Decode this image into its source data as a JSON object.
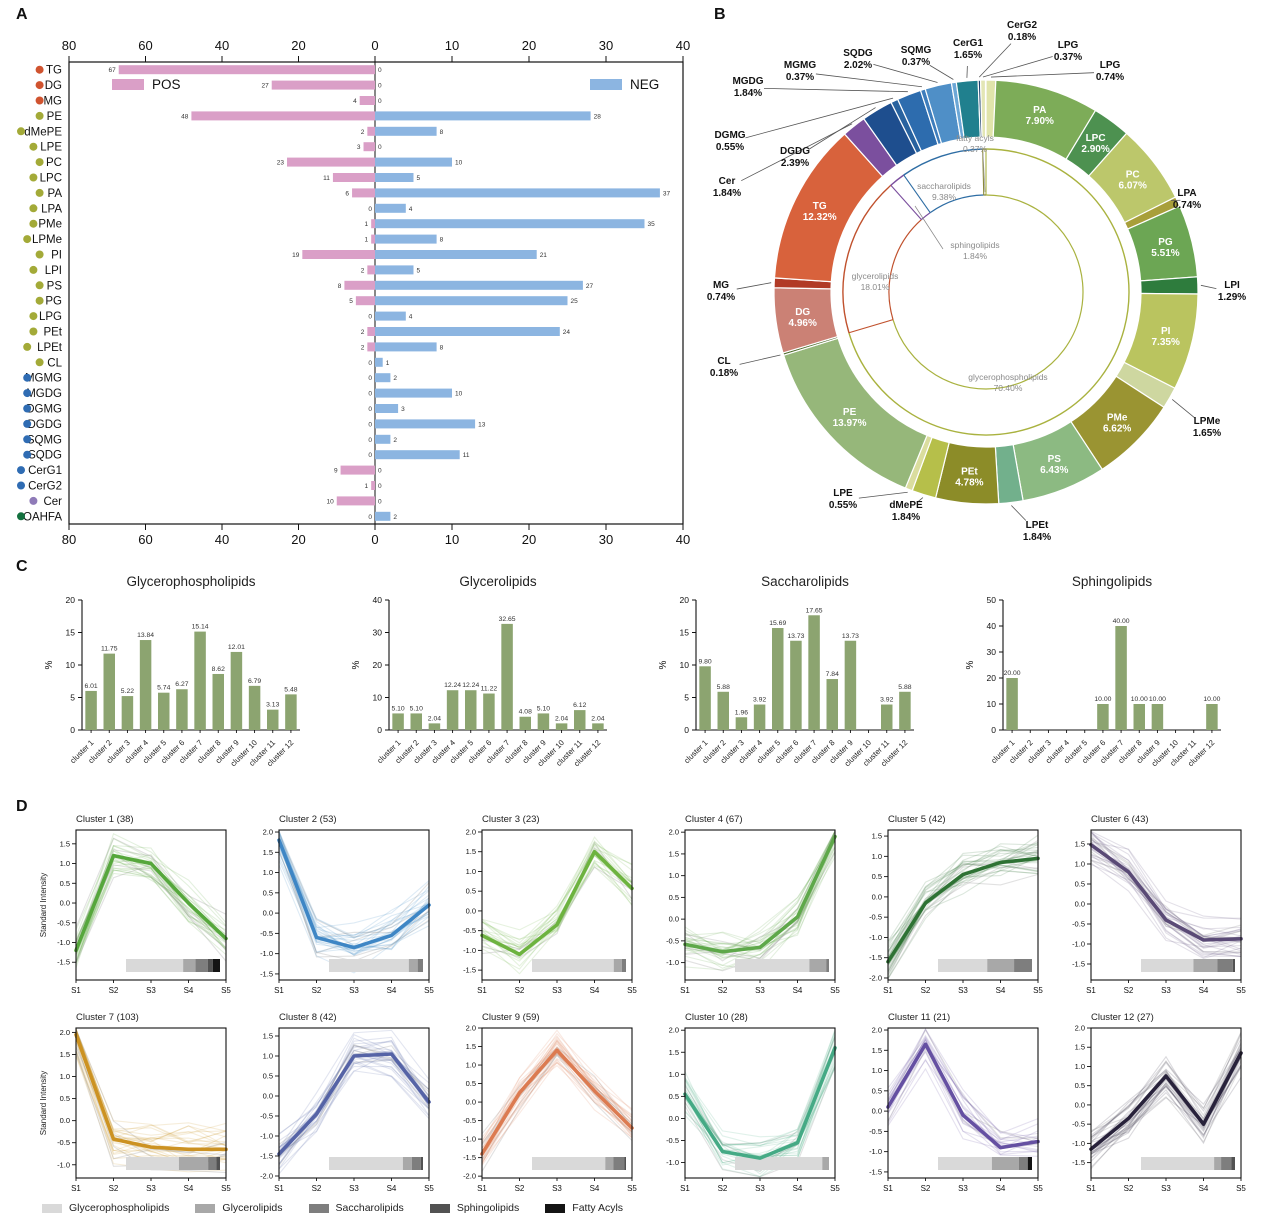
{
  "panel_letters": {
    "a": "A",
    "b": "B",
    "c": "C",
    "d": "D"
  },
  "figure_legend": {
    "items": [
      {
        "label": "Glycerophospholipids",
        "color": "#d9d9d9"
      },
      {
        "label": "Glycerolipids",
        "color": "#a8a8a8"
      },
      {
        "label": "Saccharolipids",
        "color": "#7e7e7e"
      },
      {
        "label": "Sphingolipids",
        "color": "#525252"
      },
      {
        "label": "Fatty Acyls",
        "color": "#141414"
      }
    ]
  },
  "chart_data": [
    {
      "panel": "A",
      "type": "bar",
      "orientation": "diverging-horizontal",
      "legend": [
        {
          "name": "POS",
          "color": "#DA9FC7"
        },
        {
          "name": "NEG",
          "color": "#8CB5E1"
        }
      ],
      "axis": {
        "left_max": 80,
        "right_max": 40,
        "left_ticks": [
          80,
          60,
          40,
          20,
          0
        ],
        "right_ticks": [
          10,
          20,
          30,
          40
        ]
      },
      "group_colors": {
        "glycerolipids": "#d0532f",
        "glycerophospholipids": "#a3aa38",
        "saccharolipids": "#2f6cb3",
        "sphingolipids": "#8f7bb8",
        "fatty_acyls": "#14713f"
      },
      "rows": [
        {
          "label": "TG",
          "group": "glycerolipids",
          "pos": 67,
          "neg": 0
        },
        {
          "label": "DG",
          "group": "glycerolipids",
          "pos": 27,
          "neg": 0
        },
        {
          "label": "MG",
          "group": "glycerolipids",
          "pos": 4,
          "neg": 0
        },
        {
          "label": "PE",
          "group": "glycerophospholipids",
          "pos": 48,
          "neg": 28
        },
        {
          "label": "dMePE",
          "group": "glycerophospholipids",
          "pos": 2,
          "neg": 8
        },
        {
          "label": "LPE",
          "group": "glycerophospholipids",
          "pos": 3,
          "neg": 0
        },
        {
          "label": "PC",
          "group": "glycerophospholipids",
          "pos": 23,
          "neg": 10
        },
        {
          "label": "LPC",
          "group": "glycerophospholipids",
          "pos": 11,
          "neg": 5
        },
        {
          "label": "PA",
          "group": "glycerophospholipids",
          "pos": 6,
          "neg": 37
        },
        {
          "label": "LPA",
          "group": "glycerophospholipids",
          "pos": 0,
          "neg": 4
        },
        {
          "label": "PMe",
          "group": "glycerophospholipids",
          "pos": 1,
          "neg": 35
        },
        {
          "label": "LPMe",
          "group": "glycerophospholipids",
          "pos": 1,
          "neg": 8
        },
        {
          "label": "PI",
          "group": "glycerophospholipids",
          "pos": 19,
          "neg": 21
        },
        {
          "label": "LPI",
          "group": "glycerophospholipids",
          "pos": 2,
          "neg": 5
        },
        {
          "label": "PS",
          "group": "glycerophospholipids",
          "pos": 8,
          "neg": 27
        },
        {
          "label": "PG",
          "group": "glycerophospholipids",
          "pos": 5,
          "neg": 25
        },
        {
          "label": "LPG",
          "group": "glycerophospholipids",
          "pos": 0,
          "neg": 4
        },
        {
          "label": "PEt",
          "group": "glycerophospholipids",
          "pos": 2,
          "neg": 24
        },
        {
          "label": "LPEt",
          "group": "glycerophospholipids",
          "pos": 2,
          "neg": 8
        },
        {
          "label": "CL",
          "group": "glycerophospholipids",
          "pos": 0,
          "neg": 1
        },
        {
          "label": "MGMG",
          "group": "saccharolipids",
          "pos": 0,
          "neg": 2
        },
        {
          "label": "MGDG",
          "group": "saccharolipids",
          "pos": 0,
          "neg": 10
        },
        {
          "label": "DGMG",
          "group": "saccharolipids",
          "pos": 0,
          "neg": 3
        },
        {
          "label": "DGDG",
          "group": "saccharolipids",
          "pos": 0,
          "neg": 13
        },
        {
          "label": "SQMG",
          "group": "saccharolipids",
          "pos": 0,
          "neg": 2
        },
        {
          "label": "SQDG",
          "group": "saccharolipids",
          "pos": 0,
          "neg": 11
        },
        {
          "label": "CerG1",
          "group": "saccharolipids",
          "pos": 9,
          "neg": 0
        },
        {
          "label": "CerG2",
          "group": "saccharolipids",
          "pos": 1,
          "neg": 0
        },
        {
          "label": "Cer",
          "group": "sphingolipids",
          "pos": 10,
          "neg": 0
        },
        {
          "label": "OAHFA",
          "group": "fatty_acyls",
          "pos": 0,
          "neg": 2
        }
      ]
    },
    {
      "panel": "B",
      "type": "pie",
      "style": "sunburst-donut",
      "outer": [
        {
          "label": "LPG",
          "pct": 0.74,
          "color": "#e0e4ab"
        },
        {
          "label": "PA",
          "pct": 7.9,
          "color": "#7dac58"
        },
        {
          "label": "LPC",
          "pct": 2.9,
          "color": "#4d9150"
        },
        {
          "label": "PC",
          "pct": 6.07,
          "color": "#bcc76b"
        },
        {
          "label": "LPA",
          "pct": 0.74,
          "color": "#a89f3a"
        },
        {
          "label": "PG",
          "pct": 5.51,
          "color": "#6ca654"
        },
        {
          "label": "LPI",
          "pct": 1.29,
          "color": "#2e7c3d"
        },
        {
          "label": "PI",
          "pct": 7.35,
          "color": "#bac45f"
        },
        {
          "label": "LPMe",
          "pct": 1.65,
          "color": "#ced7a0"
        },
        {
          "label": "PMe",
          "pct": 6.62,
          "color": "#9a9432"
        },
        {
          "label": "PS",
          "pct": 6.43,
          "color": "#8cba82"
        },
        {
          "label": "LPEt",
          "pct": 1.84,
          "color": "#72b08c"
        },
        {
          "label": "PEt",
          "pct": 4.78,
          "color": "#8c8c28"
        },
        {
          "label": "dMePE",
          "pct": 1.84,
          "color": "#b6bf4a"
        },
        {
          "label": "LPE",
          "pct": 0.55,
          "color": "#dadd9e"
        },
        {
          "label": "PE",
          "pct": 13.97,
          "color": "#96b77a"
        },
        {
          "label": "CL",
          "pct": 0.18,
          "color": "#4c6a2a"
        },
        {
          "label": "DG",
          "pct": 4.96,
          "color": "#cb8175"
        },
        {
          "label": "MG",
          "pct": 0.74,
          "color": "#b13a26"
        },
        {
          "label": "TG",
          "pct": 12.32,
          "color": "#d8623c"
        },
        {
          "label": "Cer",
          "pct": 1.84,
          "color": "#7b4f9e"
        },
        {
          "label": "DGDG",
          "pct": 2.39,
          "color": "#1e4e8e"
        },
        {
          "label": "DGMG",
          "pct": 0.55,
          "color": "#28629f"
        },
        {
          "label": "MGDG",
          "pct": 1.84,
          "color": "#2d6cae"
        },
        {
          "label": "MGMG",
          "pct": 0.37,
          "color": "#3e7dbc"
        },
        {
          "label": "SQDG",
          "pct": 2.02,
          "color": "#4f8fc7"
        },
        {
          "label": "SQMG",
          "pct": 0.37,
          "color": "#6ca7d6"
        },
        {
          "label": "CerG1",
          "pct": 1.65,
          "color": "#20808e"
        },
        {
          "label": "CerG2",
          "pct": 0.18,
          "color": "#1c406e"
        },
        {
          "label": "LPG",
          "pct": 0.37,
          "color": "#e3e6b5"
        }
      ],
      "inner": [
        {
          "label": "glycerophospholipids",
          "pct": 70.4,
          "color": "#a9b23f"
        },
        {
          "label": "glycerolipids",
          "pct": 18.01,
          "color": "#c0512d"
        },
        {
          "label": "sphingolipids",
          "pct": 1.84,
          "color": "#7b4f9e"
        },
        {
          "label": "saccharolipids",
          "pct": 9.38,
          "color": "#2e6da4"
        },
        {
          "label": "fatty acyls",
          "pct": 0.37,
          "color": "#8a8a3a"
        }
      ]
    },
    {
      "panel": "C",
      "type": "bar",
      "ylabel": "%",
      "bar_color": "#8CA470",
      "categories": [
        "cluster 1",
        "cluster 2",
        "cluster 3",
        "cluster 4",
        "cluster 5",
        "cluster 6",
        "cluster 7",
        "cluster 8",
        "cluster 9",
        "cluster 10",
        "cluster 11",
        "cluster 12"
      ],
      "charts": [
        {
          "title": "Glycerophospholipids",
          "ylim": [
            0,
            20
          ],
          "yticks": [
            0,
            5,
            10,
            15,
            20
          ],
          "values": [
            6.01,
            11.75,
            5.22,
            13.84,
            5.74,
            6.27,
            15.14,
            8.62,
            12.01,
            6.79,
            3.13,
            5.48
          ]
        },
        {
          "title": "Glycerolipids",
          "ylim": [
            0,
            40
          ],
          "yticks": [
            0,
            10,
            20,
            30,
            40
          ],
          "values": [
            5.1,
            5.1,
            2.04,
            12.24,
            12.24,
            11.22,
            32.65,
            4.08,
            5.1,
            2.04,
            6.12,
            2.04
          ]
        },
        {
          "title": "Saccharolipids",
          "ylim": [
            0,
            20
          ],
          "yticks": [
            0,
            5,
            10,
            15,
            20
          ],
          "values": [
            9.8,
            5.88,
            1.96,
            3.92,
            15.69,
            13.73,
            17.65,
            7.84,
            13.73,
            0,
            3.92,
            5.88
          ]
        },
        {
          "title": "Sphingolipids",
          "ylim": [
            0,
            50
          ],
          "yticks": [
            0,
            10,
            20,
            30,
            40,
            50
          ],
          "values": [
            20.0,
            0,
            0,
            0,
            0,
            10.0,
            40.0,
            10.0,
            10.0,
            0,
            0,
            10.0
          ]
        }
      ]
    },
    {
      "panel": "D",
      "type": "line",
      "x": [
        "S1",
        "S2",
        "S3",
        "S4",
        "S5"
      ],
      "ylabel": "Standard Intensity",
      "clusters": [
        {
          "title": "Cluster 1 (38)",
          "count": 38,
          "color": "#56a73c",
          "yticks": [
            1.5,
            1.0,
            0.5,
            0.0,
            -0.5,
            -1.0,
            -1.5
          ],
          "ymin": -1.95,
          "ymax": 1.85,
          "mean": [
            -1.2,
            1.2,
            1.0,
            0.0,
            -0.9
          ]
        },
        {
          "title": "Cluster 2 (53)",
          "count": 53,
          "color": "#3e86c5",
          "yticks": [
            2.0,
            1.5,
            1.0,
            0.5,
            0.0,
            -0.5,
            -1.0,
            -1.5
          ],
          "ymin": -1.65,
          "ymax": 2.05,
          "mean": [
            1.8,
            -0.6,
            -0.85,
            -0.55,
            0.2
          ]
        },
        {
          "title": "Cluster 3 (23)",
          "count": 23,
          "color": "#6db33f",
          "yticks": [
            2.0,
            1.5,
            1.0,
            0.5,
            0.0,
            -0.5,
            -1.0,
            -1.5
          ],
          "ymin": -1.75,
          "ymax": 2.05,
          "mean": [
            -0.62,
            -1.1,
            -0.35,
            1.5,
            0.57
          ]
        },
        {
          "title": "Cluster 4 (67)",
          "count": 67,
          "color": "#5ea84a",
          "yticks": [
            2.0,
            1.5,
            1.0,
            0.5,
            0.0,
            -0.5,
            -1.0
          ],
          "ymin": -1.4,
          "ymax": 2.05,
          "mean": [
            -0.58,
            -0.75,
            -0.65,
            0.05,
            1.9
          ]
        },
        {
          "title": "Cluster 5 (42)",
          "count": 42,
          "color": "#2e7234",
          "yticks": [
            1.5,
            1.0,
            0.5,
            0.0,
            -0.5,
            -1.0,
            -1.5,
            -2.0
          ],
          "ymin": -2.05,
          "ymax": 1.65,
          "mean": [
            -1.6,
            -0.15,
            0.55,
            0.85,
            0.95
          ]
        },
        {
          "title": "Cluster 6 (43)",
          "count": 43,
          "color": "#5a4a76",
          "yticks": [
            1.5,
            1.0,
            0.5,
            0.0,
            -0.5,
            -1.0,
            -1.5
          ],
          "ymin": -1.9,
          "ymax": 1.85,
          "mean": [
            1.48,
            0.8,
            -0.4,
            -0.9,
            -0.87
          ]
        },
        {
          "title": "Cluster 7 (103)",
          "count": 103,
          "color": "#cc9222",
          "yticks": [
            2.0,
            1.5,
            1.0,
            0.5,
            0.0,
            -0.5,
            -1.0
          ],
          "ymin": -1.3,
          "ymax": 2.1,
          "mean": [
            1.95,
            -0.42,
            -0.6,
            -0.65,
            -0.65
          ]
        },
        {
          "title": "Cluster 8 (42)",
          "count": 42,
          "color": "#5563a6",
          "yticks": [
            1.5,
            1.0,
            0.5,
            0.0,
            -0.5,
            -1.0,
            -1.5,
            -2.0
          ],
          "ymin": -2.05,
          "ymax": 1.7,
          "mean": [
            -1.45,
            -0.45,
            1.0,
            1.05,
            -0.15
          ]
        },
        {
          "title": "Cluster 9 (59)",
          "count": 59,
          "color": "#dc7b51",
          "yticks": [
            2.0,
            1.5,
            1.0,
            0.5,
            0.0,
            -0.5,
            -1.0,
            -1.5,
            -2.0
          ],
          "ymin": -2.05,
          "ymax": 2.0,
          "mean": [
            -1.4,
            0.25,
            1.4,
            0.3,
            -0.7
          ]
        },
        {
          "title": "Cluster 10 (28)",
          "count": 28,
          "color": "#45aa85",
          "yticks": [
            2.0,
            1.5,
            1.0,
            0.5,
            0.0,
            -0.5,
            -1.0
          ],
          "ymin": -1.35,
          "ymax": 2.05,
          "mean": [
            0.55,
            -0.75,
            -0.9,
            -0.55,
            1.6
          ]
        },
        {
          "title": "Cluster 11 (21)",
          "count": 21,
          "color": "#6550a2",
          "yticks": [
            2.0,
            1.5,
            1.0,
            0.5,
            0.0,
            -0.5,
            -1.0,
            -1.5
          ],
          "ymin": -1.65,
          "ymax": 2.05,
          "mean": [
            0.1,
            1.65,
            -0.1,
            -0.9,
            -0.75
          ]
        },
        {
          "title": "Cluster 12 (27)",
          "count": 27,
          "color": "#28223b",
          "yticks": [
            2.0,
            1.5,
            1.0,
            0.5,
            0.0,
            -0.5,
            -1.0,
            -1.5
          ],
          "ymin": -1.9,
          "ymax": 2.0,
          "mean": [
            -1.15,
            -0.35,
            0.75,
            -0.5,
            1.35
          ]
        }
      ]
    }
  ]
}
